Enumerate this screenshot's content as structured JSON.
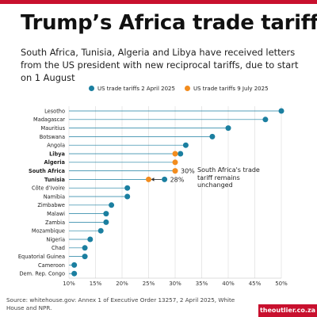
{
  "title": "Trump’s Africa trade tariffs",
  "subtitle": "South Africa, Tunisia, Algeria and Libya have received letters from the US president with new reciprocal tariffs, due to start on 1 August",
  "legend": [
    {
      "label": "US trade tariffs 2 April 2025",
      "color": "#1b7fa0"
    },
    {
      "label": "US trade tariffs 9 July 2025",
      "color": "#f28c1e"
    }
  ],
  "annotation": "South Africa's trade tariff remains unchanged",
  "source": "Source: whitehouse.gov: Annex 1 of Executive Order 13257, 2 April 2025, White House and NPR.",
  "brand": "theoutlier.co.za",
  "colors": {
    "april": "#1b7fa0",
    "july": "#f28c1e",
    "accent": "#c8102e",
    "grid": "#d9d9d9"
  },
  "chart_data": {
    "type": "scatter",
    "series": [
      {
        "name": "US trade tariffs 2 April 2025",
        "color": "#1b7fa0"
      },
      {
        "name": "US trade tariffs 9 July 2025",
        "color": "#f28c1e"
      }
    ],
    "xlim": [
      10,
      50
    ],
    "x_ticks": [
      "10%",
      "15%",
      "20%",
      "25%",
      "30%",
      "35%",
      "40%",
      "45%",
      "50%"
    ],
    "x_tick_values": [
      10,
      15,
      20,
      25,
      30,
      35,
      40,
      45,
      50
    ],
    "grid": true,
    "rows": [
      {
        "country": "Lesotho",
        "april": 50,
        "july": null,
        "bold": false
      },
      {
        "country": "Madagascar",
        "april": 47,
        "july": null,
        "bold": false
      },
      {
        "country": "Mauritius",
        "april": 40,
        "july": null,
        "bold": false
      },
      {
        "country": "Botswana",
        "april": 37,
        "july": null,
        "bold": false
      },
      {
        "country": "Angola",
        "april": 32,
        "july": null,
        "bold": false
      },
      {
        "country": "Libya",
        "april": 31,
        "july": 30,
        "bold": true
      },
      {
        "country": "Algeria",
        "april": 30,
        "july": 30,
        "bold": true
      },
      {
        "country": "South Africa",
        "april": 30,
        "july": 30,
        "bold": true,
        "value_label": "30%"
      },
      {
        "country": "Tunisia",
        "april": 28,
        "july": 25,
        "bold": true,
        "value_label": "28%"
      },
      {
        "country": "Côte d’Ivoire",
        "april": 21,
        "july": null,
        "bold": false
      },
      {
        "country": "Namibia",
        "april": 21,
        "july": null,
        "bold": false
      },
      {
        "country": "Zimbabwe",
        "april": 18,
        "july": null,
        "bold": false
      },
      {
        "country": "Malawi",
        "april": 17,
        "july": null,
        "bold": false
      },
      {
        "country": "Zambia",
        "april": 17,
        "july": null,
        "bold": false
      },
      {
        "country": "Mozambique",
        "april": 16,
        "july": null,
        "bold": false
      },
      {
        "country": "Nigeria",
        "april": 14,
        "july": null,
        "bold": false
      },
      {
        "country": "Chad",
        "april": 13,
        "july": null,
        "bold": false
      },
      {
        "country": "Equatorial Guinea",
        "april": 13,
        "july": null,
        "bold": false
      },
      {
        "country": "Cameroon",
        "april": 11,
        "july": null,
        "bold": false
      },
      {
        "country": "Dem. Rep. Congo",
        "april": 11,
        "july": null,
        "bold": false
      }
    ]
  }
}
